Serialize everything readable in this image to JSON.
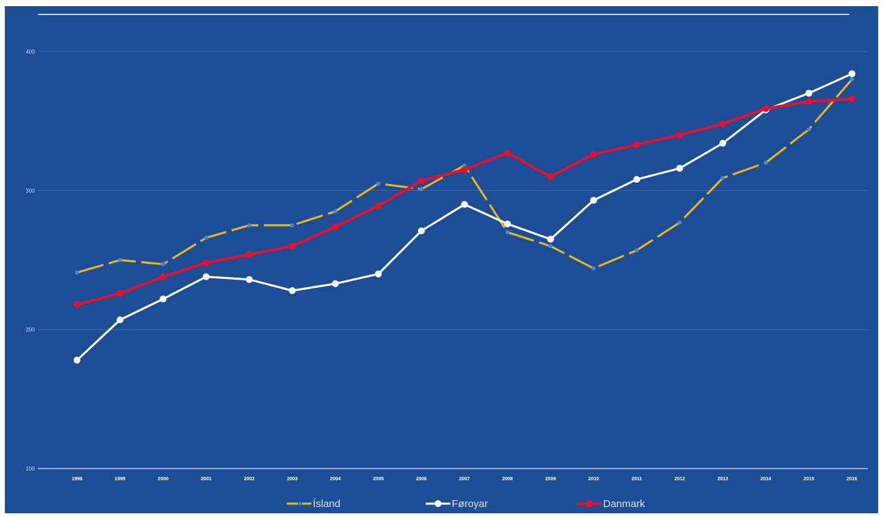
{
  "chart_data": {
    "type": "line",
    "title": "",
    "xlabel": "",
    "ylabel": "",
    "categories": [
      "1998",
      "1999",
      "2000",
      "2001",
      "2002",
      "2003",
      "2004",
      "2005",
      "2006",
      "2007",
      "2008",
      "2009",
      "2010",
      "2011",
      "2012",
      "2013",
      "2014",
      "2015",
      "2016"
    ],
    "yticks": [
      "100",
      "200",
      "300",
      "400"
    ],
    "ylim": [
      100,
      420
    ],
    "grid": true,
    "legend_position": "bottom",
    "series": [
      {
        "name": "Ísland",
        "color": "#f1b514",
        "style": "dashed",
        "marker_color": "#3f8bd0",
        "values": [
          241,
          250,
          247,
          266,
          275,
          275,
          285,
          305,
          301,
          318,
          270,
          260,
          244,
          257,
          277,
          309,
          320,
          344,
          380
        ]
      },
      {
        "name": "Føroyar",
        "color": "#ffffff",
        "style": "solid",
        "marker_color": "#ffffff",
        "values": [
          178,
          207,
          222,
          238,
          236,
          228,
          233,
          240,
          271,
          290,
          276,
          265,
          293,
          308,
          316,
          334,
          358,
          370,
          384
        ]
      },
      {
        "name": "Danmark",
        "color": "#e3122e",
        "style": "solid",
        "marker_color": "#e3122e",
        "values": [
          218,
          226,
          238,
          248,
          254,
          260,
          274,
          289,
          307,
          315,
          327,
          310,
          326,
          333,
          340,
          348,
          359,
          364,
          366
        ]
      }
    ]
  }
}
